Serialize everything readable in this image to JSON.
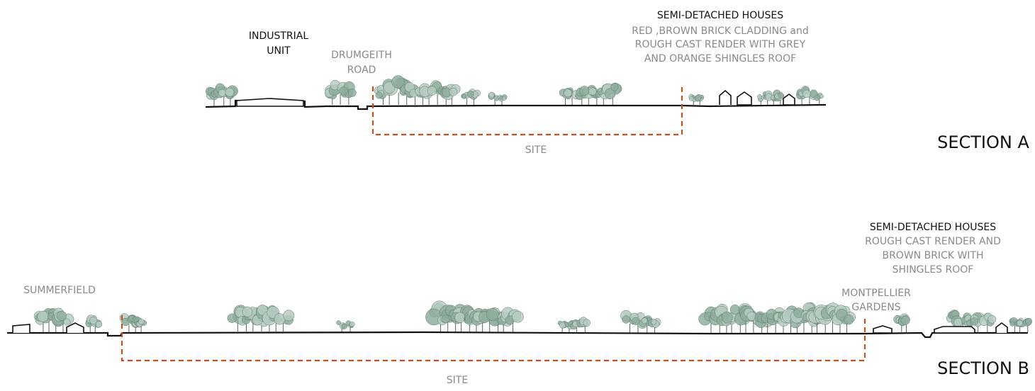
{
  "sections": [
    {
      "title": "SECTION A",
      "site_label": "SITE",
      "industrial_unit": [
        "INDUSTRIAL",
        "UNIT"
      ],
      "road": [
        "DRUMGEITH",
        "ROAD"
      ],
      "houses": {
        "title": "SEMI-DETACHED HOUSES",
        "lines": [
          "RED ,BROWN BRICK CLADDING and",
          "ROUGH CAST RENDER WITH GREY",
          "AND ORANGE SHINGLES ROOF"
        ]
      }
    },
    {
      "title": "SECTION B",
      "site_label": "SITE",
      "summerfield": "SUMMERFIELD",
      "gardens": [
        "MONTPELLIER",
        "GARDENS"
      ],
      "houses": {
        "title": "SEMI-DETACHED HOUSES",
        "lines": [
          "ROUGH CAST RENDER AND",
          "BROWN BRICK WITH",
          "SHINGLES ROOF"
        ]
      }
    }
  ]
}
